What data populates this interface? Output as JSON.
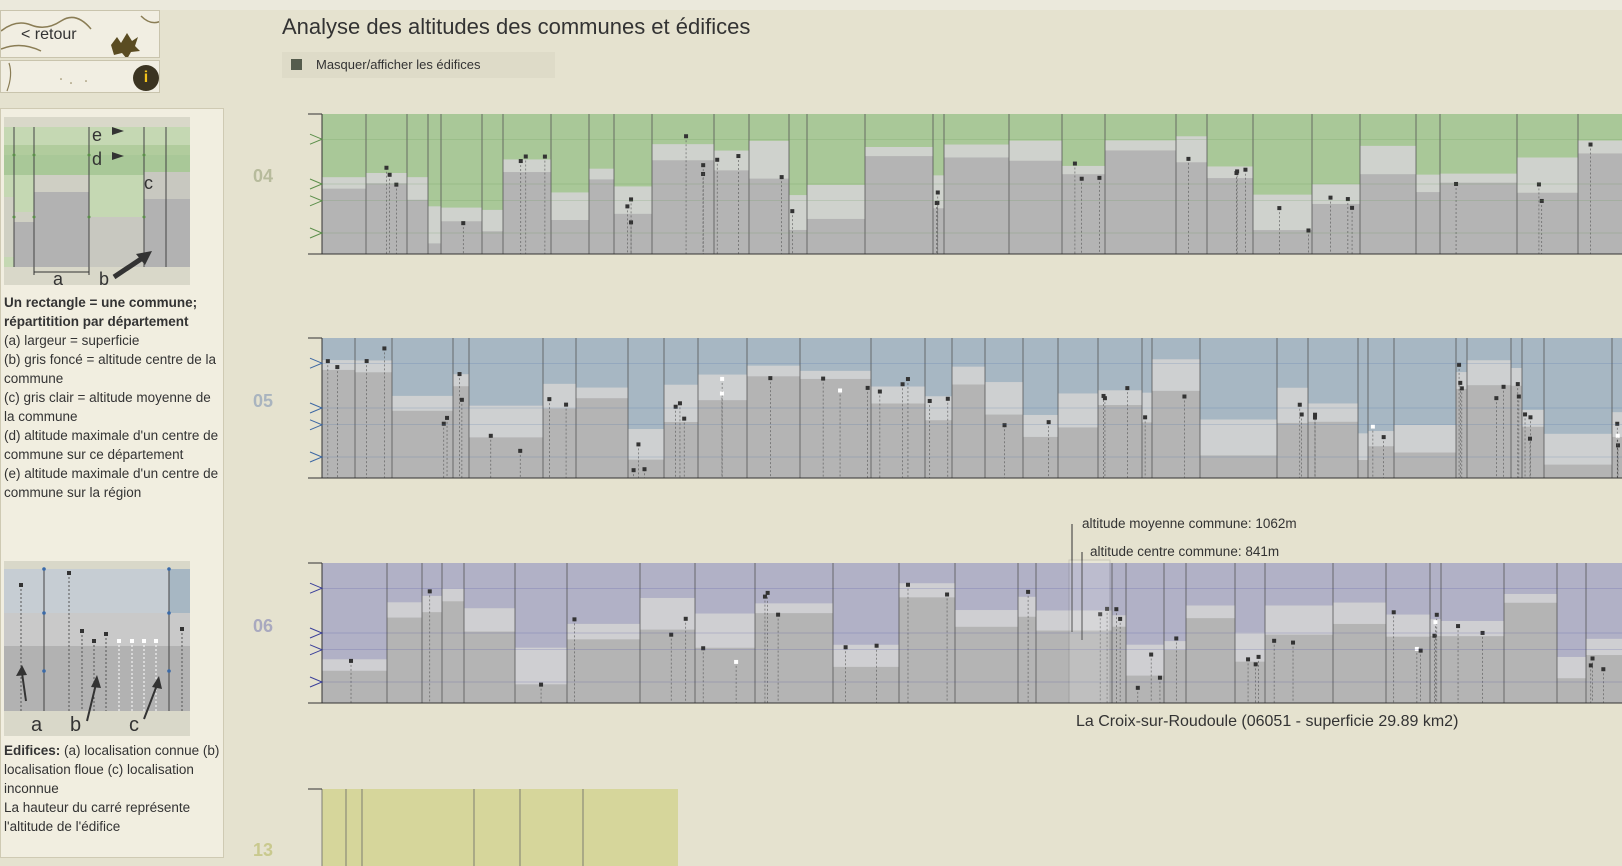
{
  "header": {
    "back_label": "< retour",
    "info_icon": "i",
    "title": "Analyse des altitudes des communes et édifices",
    "toggle_label": "Masquer/afficher les édifices"
  },
  "legend": {
    "fig1_letters": {
      "a": "a",
      "b": "b",
      "c": "c",
      "d": "d",
      "e": "e"
    },
    "intro_bold": "Un rectangle = une commune; répartitition par département",
    "items": [
      "(a) largeur = superficie",
      "(b) gris foncé = altitude centre de la commune",
      "(c) gris clair = altitude moyenne de la commune",
      "(d) altitude maximale d'un centre de commune sur ce département",
      "(e) altitude maximale d'un centre de commune sur la région"
    ],
    "fig2_letters": {
      "a": "a",
      "b": "b",
      "c": "c"
    },
    "edifices_bold": "Edifices:",
    "edifices_text": "(a) localisation connue (b) localisation floue (c) localisation inconnue",
    "edifices_note": "La hauteur du carré représente l'altitude de l'édifice"
  },
  "departments": [
    {
      "code": "04",
      "color": "#a9c898",
      "tick_color": "#5b8f4a",
      "label_color": "#b7bb9c"
    },
    {
      "code": "05",
      "color": "#a7b7c3",
      "tick_color": "#3c67a3",
      "label_color": "#a9b4bf"
    },
    {
      "code": "06",
      "color": "#b1b1c6",
      "tick_color": "#3a3f9a",
      "label_color": "#a9a9bf"
    },
    {
      "code": "13",
      "color": "#d6d69b",
      "tick_color": "#777",
      "label_color": "#c9c98e"
    }
  ],
  "hover": {
    "tooltip_avg": "altitude moyenne commune: 1062m",
    "tooltip_center": "altitude centre commune: 841m",
    "commune": "La Croix-sur-Roudoule (06051 - superficie 29.89 km2)"
  },
  "colors": {
    "center_gray": "#b4b4b4",
    "avg_gray": "#d3d3d3",
    "edifice_known": "#333333",
    "edifice_unknown": "#ffffff"
  }
}
